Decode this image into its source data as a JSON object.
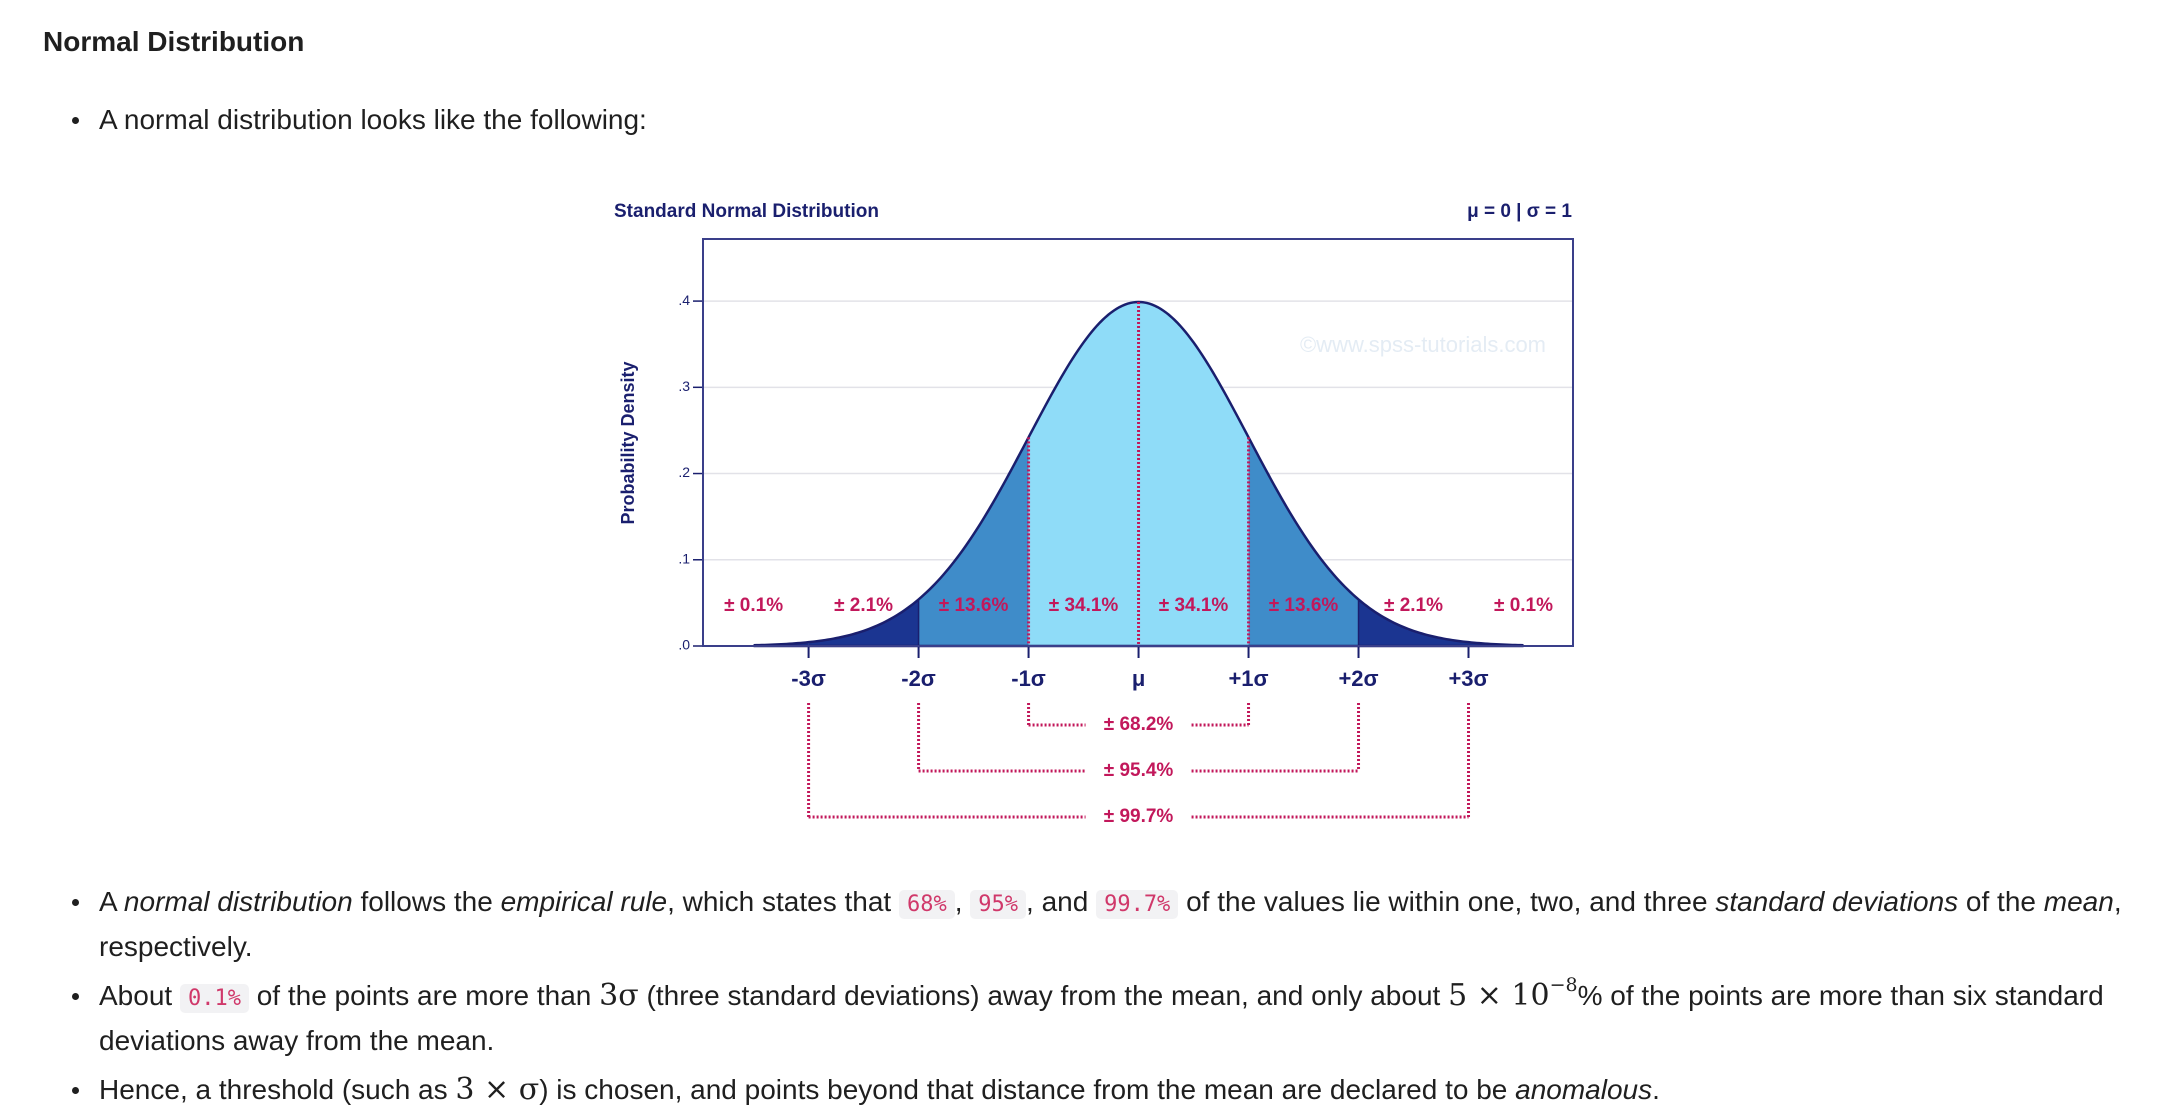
{
  "heading": "Normal Distribution",
  "intro_bullets": [
    [
      {
        "text": "A normal distribution looks like the following:"
      }
    ]
  ],
  "figure": {
    "type": "normal-curve",
    "title": "Standard Normal Distribution",
    "subtitle": "μ = 0 | σ = 1",
    "ylabel": "Probability Density",
    "watermark": "©www.spss-tutorials.com",
    "xlim": [
      -3.96,
      3.95
    ],
    "ylim": [
      0,
      0.472
    ],
    "yticks": [
      {
        "value": 0,
        "label": ".0"
      },
      {
        "value": 0.1,
        "label": ".1"
      },
      {
        "value": 0.2,
        "label": ".2"
      },
      {
        "value": 0.3,
        "label": ".3"
      },
      {
        "value": 0.4,
        "label": ".4"
      }
    ],
    "xticks": [
      {
        "value": -3,
        "label": "-3σ"
      },
      {
        "value": -2,
        "label": "-2σ"
      },
      {
        "value": -1,
        "label": "-1σ"
      },
      {
        "value": 0,
        "label": "μ"
      },
      {
        "value": 1,
        "label": "+1σ"
      },
      {
        "value": 2,
        "label": "+2σ"
      },
      {
        "value": 3,
        "label": "+3σ"
      }
    ],
    "regions": [
      {
        "value": 0.1,
        "label": "± 0.1%",
        "color": "#1b3591"
      },
      {
        "value": 2.1,
        "label": "± 2.1%",
        "color": "#1b3591"
      },
      {
        "value": 13.6,
        "label": "± 13.6%",
        "color": "#3f8cc9"
      },
      {
        "value": 34.1,
        "label": "± 34.1%",
        "color": "#8fdcf8"
      },
      {
        "value": 34.1,
        "label": "± 34.1%",
        "color": "#8fdcf8"
      },
      {
        "value": 13.6,
        "label": "± 13.6%",
        "color": "#3f8cc9"
      },
      {
        "value": 2.1,
        "label": "± 2.1%",
        "color": "#1b3591"
      },
      {
        "value": 0.1,
        "label": "± 0.1%",
        "color": "#1b3591"
      }
    ],
    "brackets": [
      {
        "value": 68.2,
        "label": "± 68.2%",
        "sigma": 1
      },
      {
        "value": 95.4,
        "label": "± 95.4%",
        "sigma": 2
      },
      {
        "value": 99.7,
        "label": "± 99.7%",
        "sigma": 3
      }
    ]
  },
  "bullets": [
    [
      {
        "text": "A "
      },
      {
        "text": "normal distribution",
        "style": "italic"
      },
      {
        "text": " follows the "
      },
      {
        "text": "empirical rule",
        "style": "italic"
      },
      {
        "text": ", which states that "
      },
      {
        "text": "68%",
        "style": "code"
      },
      {
        "text": ", "
      },
      {
        "text": "95%",
        "style": "code"
      },
      {
        "text": ", and "
      },
      {
        "text": "99.7%",
        "style": "code"
      },
      {
        "text": " of the values lie within one, two, and three "
      },
      {
        "text": "standard deviations",
        "style": "italic"
      },
      {
        "text": " of the "
      },
      {
        "text": "mean",
        "style": "italic"
      },
      {
        "text": ", respectively."
      }
    ],
    [
      {
        "text": "About "
      },
      {
        "text": "0.1%",
        "style": "code"
      },
      {
        "text": " of the points are more than "
      },
      {
        "text": "3σ",
        "style": "math"
      },
      {
        "text": " (three standard deviations) away from the mean, and only about "
      },
      {
        "text": "5 × 10",
        "style": "math"
      },
      {
        "text": "−8",
        "style": "sup"
      },
      {
        "text": "% of the points are more than six standard deviations away from the mean."
      }
    ],
    [
      {
        "text": "Hence, a threshold (such as "
      },
      {
        "text": "3 × σ",
        "style": "math"
      },
      {
        "text": ") is chosen, and points beyond that distance from the mean are declared to be "
      },
      {
        "text": "anomalous",
        "style": "italic"
      },
      {
        "text": "."
      }
    ]
  ]
}
